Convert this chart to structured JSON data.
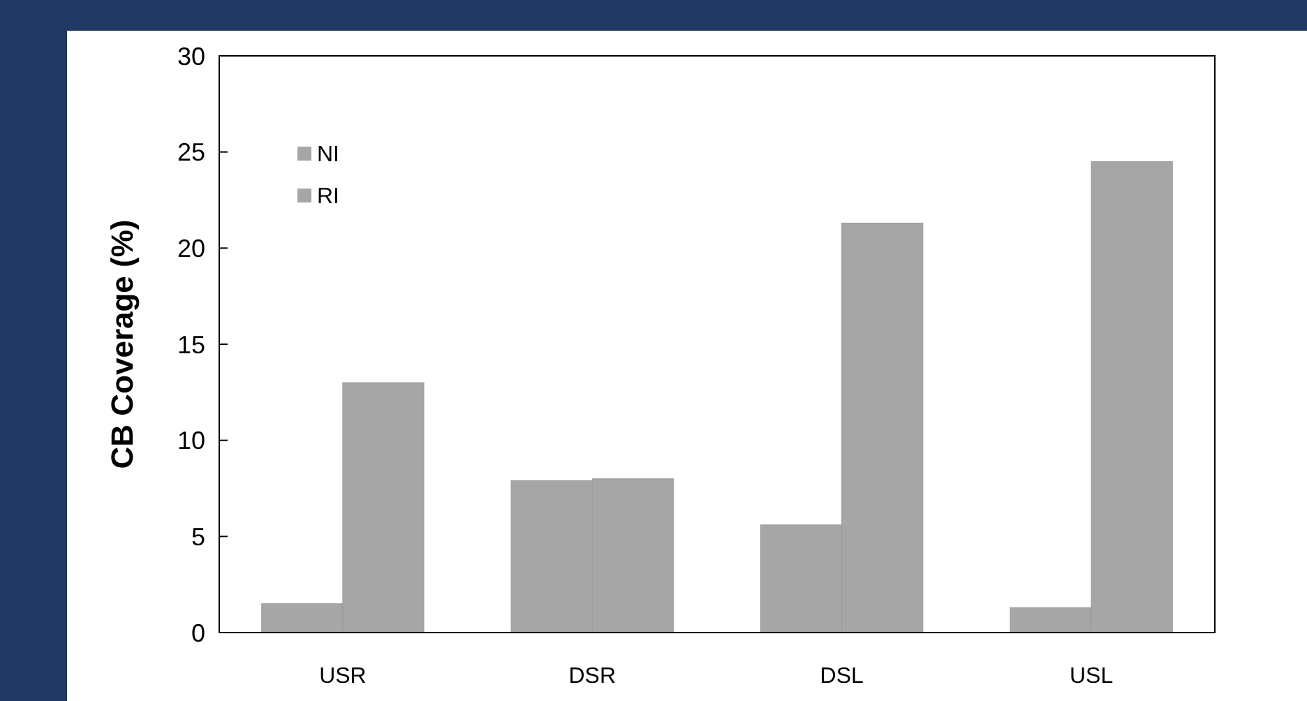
{
  "chart_data": {
    "type": "bar",
    "ylabel": "CB Coverage (%)",
    "categories": [
      "USR",
      "DSR",
      "DSL",
      "USL"
    ],
    "series": [
      {
        "name": "NI",
        "color": "#a6a6a6",
        "values": [
          1.5,
          7.9,
          5.6,
          1.3
        ]
      },
      {
        "name": "RI",
        "color": "#a6a6a6",
        "values": [
          13.0,
          8.0,
          21.3,
          24.5
        ]
      }
    ],
    "ylim": [
      0,
      30
    ],
    "yticks": [
      0,
      5,
      10,
      15,
      20,
      25,
      30
    ],
    "grid": false,
    "legend": "top left"
  }
}
